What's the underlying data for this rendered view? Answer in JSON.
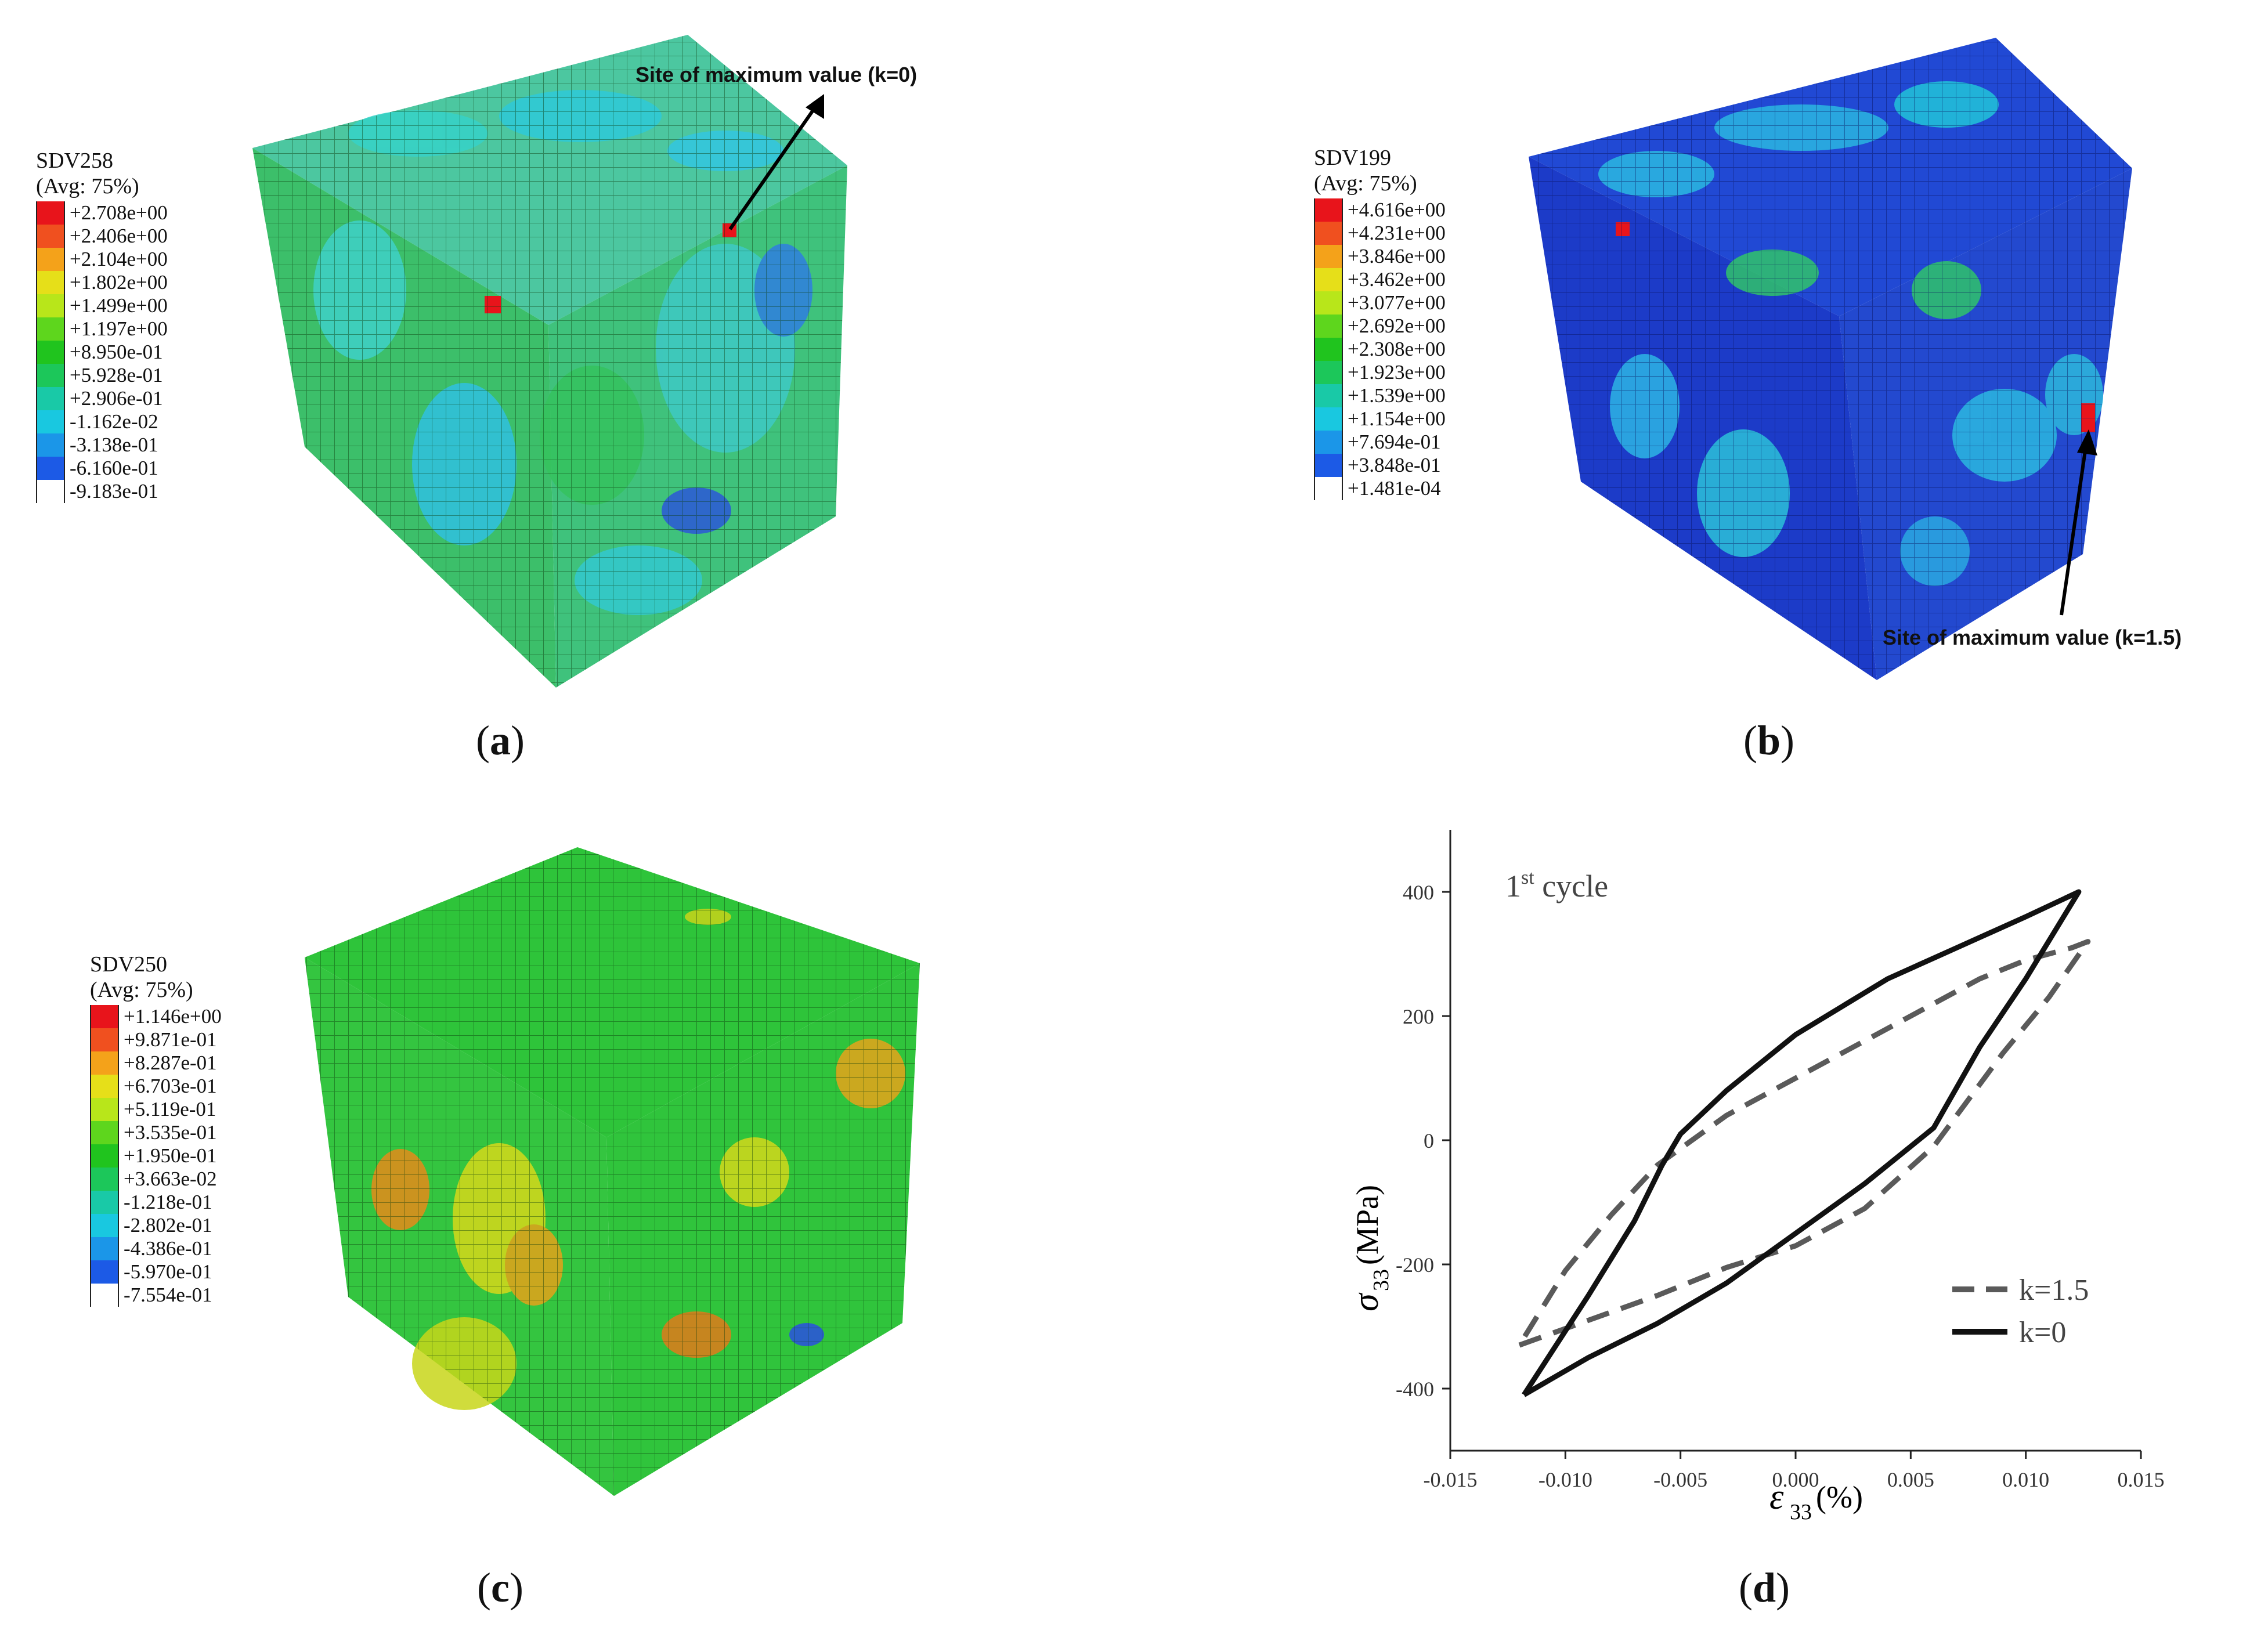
{
  "panels": [
    {
      "caption": "a",
      "legend_title": "SDV258",
      "legend_subtitle": "(Avg: 75%)",
      "legend_values": [
        "+2.708e+00",
        "+2.406e+00",
        "+2.104e+00",
        "+1.802e+00",
        "+1.499e+00",
        "+1.197e+00",
        "+8.950e-01",
        "+5.928e-01",
        "+2.906e-01",
        "-1.162e-02",
        "-3.138e-01",
        "-6.160e-01",
        "-9.183e-01"
      ],
      "annotation": "Site of maximum value (k=0)"
    },
    {
      "caption": "b",
      "legend_title": "SDV199",
      "legend_subtitle": "(Avg: 75%)",
      "legend_values": [
        "+4.616e+00",
        "+4.231e+00",
        "+3.846e+00",
        "+3.462e+00",
        "+3.077e+00",
        "+2.692e+00",
        "+2.308e+00",
        "+1.923e+00",
        "+1.539e+00",
        "+1.154e+00",
        "+7.694e-01",
        "+3.848e-01",
        "+1.481e-04"
      ],
      "annotation": "Site of maximum value (k=1.5)"
    },
    {
      "caption": "c",
      "legend_title": "SDV250",
      "legend_subtitle": "(Avg: 75%)",
      "legend_values": [
        "+1.146e+00",
        "+9.871e-01",
        "+8.287e-01",
        "+6.703e-01",
        "+5.119e-01",
        "+3.535e-01",
        "+1.950e-01",
        "+3.663e-02",
        "-1.218e-01",
        "-2.802e-01",
        "-4.386e-01",
        "-5.970e-01",
        "-7.554e-01"
      ]
    }
  ],
  "legend_colors": [
    "#e8141b",
    "#f0501f",
    "#f4a21a",
    "#e6df19",
    "#b8e61a",
    "#5ed61d",
    "#20c41e",
    "#1cc75a",
    "#19c9a7",
    "#19c8e0",
    "#1b96e8",
    "#1c5ae6",
    "#1a22d6"
  ],
  "chart_data": {
    "type": "line",
    "caption": "d",
    "title": "",
    "annotation_main": "1",
    "annotation_sup": "st",
    "annotation_rest": " cycle",
    "xlabel_symbol": "ε",
    "xlabel_sub": "33",
    "xlabel_unit": "(%)",
    "ylabel_symbol": "σ",
    "ylabel_sub": "33",
    "ylabel_unit": "(MPa)",
    "xlim": [
      -0.015,
      0.015
    ],
    "ylim": [
      -500,
      500
    ],
    "xticks": [
      -0.015,
      -0.01,
      -0.005,
      0.0,
      0.005,
      0.01,
      0.015
    ],
    "xtick_labels": [
      "-0.015",
      "-0.010",
      "-0.005",
      "0.000",
      "0.005",
      "0.010",
      "0.015"
    ],
    "yticks": [
      -400,
      -200,
      0,
      200,
      400
    ],
    "ytick_labels": [
      "-400",
      "-200",
      "0",
      "200",
      "400"
    ],
    "legend_position": "bottom-right",
    "series": [
      {
        "name": "k=1.5",
        "style": "dashed",
        "color": "#5a5a5a",
        "x": [
          -0.012,
          -0.009,
          -0.006,
          -0.003,
          0.0,
          0.003,
          0.006,
          0.009,
          0.011,
          0.0127,
          0.012,
          0.01,
          0.008,
          0.006,
          0.003,
          0.0,
          -0.003,
          -0.006,
          -0.008,
          -0.01,
          -0.011,
          -0.012
        ],
        "y": [
          -330,
          -290,
          -250,
          -205,
          -170,
          -110,
          -10,
          140,
          230,
          320,
          310,
          290,
          260,
          220,
          160,
          100,
          40,
          -40,
          -120,
          -210,
          -270,
          -330
        ]
      },
      {
        "name": "k=0",
        "style": "solid",
        "color": "#111111",
        "x": [
          -0.0118,
          -0.009,
          -0.006,
          -0.003,
          0.0,
          0.003,
          0.006,
          0.008,
          0.01,
          0.0123,
          0.01,
          0.007,
          0.004,
          0.0,
          -0.003,
          -0.005,
          -0.0058,
          -0.007,
          -0.009,
          -0.0118
        ],
        "y": [
          -410,
          -350,
          -295,
          -230,
          -150,
          -70,
          20,
          150,
          260,
          400,
          360,
          310,
          260,
          170,
          80,
          10,
          -40,
          -130,
          -250,
          -410
        ]
      }
    ]
  }
}
